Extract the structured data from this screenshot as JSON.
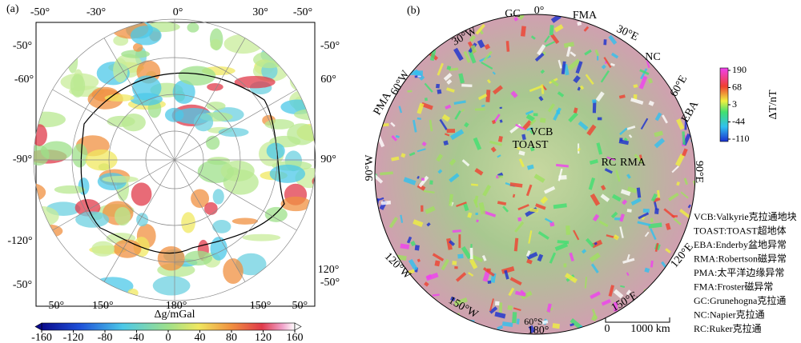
{
  "panel_a": {
    "label": "(a)",
    "top_labels": [
      "-50°",
      "-30°",
      "0°",
      "30°",
      "-50°"
    ],
    "left_labels": [
      "-50°",
      "-60°",
      "-90°",
      "-120°",
      "-50°"
    ],
    "right_labels": [
      "-50°",
      "60°",
      "90°",
      "120°",
      "-50°"
    ],
    "bottom_labels": [
      "-50°",
      "-150°",
      "180°",
      "150°",
      "-50°"
    ],
    "colorbar": {
      "title": "Δg/mGal",
      "lim": [
        -160,
        160
      ],
      "ticks": [
        -160,
        -120,
        -80,
        -40,
        0,
        40,
        80,
        120,
        160
      ]
    }
  },
  "panel_b": {
    "label": "(b)",
    "map_labels": [
      "GC",
      "0°",
      "FMA",
      "30°W",
      "30°E",
      "NC",
      "60°E",
      "EBA",
      "PMA",
      "60°W",
      "VCB",
      "TOAST",
      "RC",
      "RMA",
      "90°W",
      "90°E",
      "120°W",
      "120°E",
      "150°W",
      "150°E",
      "180°",
      "60°S"
    ],
    "colorbar": {
      "title": "ΔT/nT",
      "ticks": [
        190,
        68,
        3,
        -44,
        -110
      ]
    },
    "scale_bar": {
      "start": "0",
      "end": "1000 km"
    },
    "legend": [
      "VCB:Valkyrie克拉通地块",
      "TOAST:TOAST超地体",
      "EBA:Enderby盆地异常",
      "RMA:Robertson磁异常",
      "PMA:太平洋边缘异常",
      "FMA:Froster磁异常",
      "GC:Grunehogna克拉通",
      "NC:Napier克拉通",
      "RC:Ruker克拉通"
    ]
  }
}
